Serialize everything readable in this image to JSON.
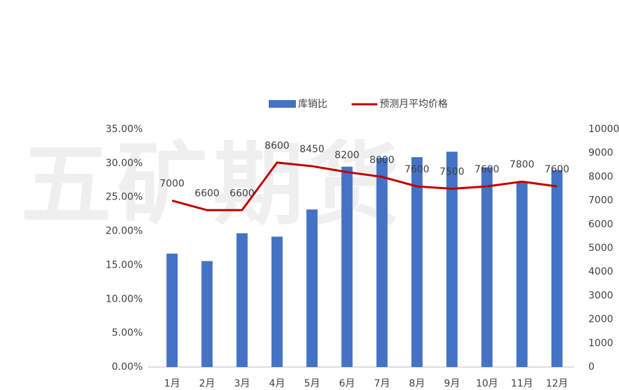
{
  "watermark": "五矿期货",
  "chart_data": {
    "type": "bar",
    "categories": [
      "1月",
      "2月",
      "3月",
      "4月",
      "5月",
      "6月",
      "7月",
      "8月",
      "9月",
      "10月",
      "11月",
      "12月"
    ],
    "series": [
      {
        "name": "库销比",
        "type": "bar",
        "color": "#4472c4",
        "axis": "y",
        "values": [
          16.7,
          15.6,
          19.7,
          19.2,
          23.2,
          29.5,
          30.8,
          30.9,
          31.7,
          29.4,
          27.2,
          29.0
        ]
      },
      {
        "name": "预测月平均价格",
        "type": "line",
        "color": "#c00000",
        "axis": "y2",
        "values": [
          7000,
          6600,
          6600,
          8600,
          8450,
          8200,
          8000,
          7600,
          7500,
          7600,
          7800,
          7600
        ]
      }
    ],
    "ylim": [
      0,
      35
    ],
    "yticks": [
      {
        "value": 0,
        "label": "0.00%"
      },
      {
        "value": 5,
        "label": "5.00%"
      },
      {
        "value": 10,
        "label": "10.00%"
      },
      {
        "value": 15,
        "label": "15.00%"
      },
      {
        "value": 20,
        "label": "20.00%"
      },
      {
        "value": 25,
        "label": "25.00%"
      },
      {
        "value": 30,
        "label": "30.00%"
      },
      {
        "value": 35,
        "label": "35.00%"
      }
    ],
    "y2lim": [
      0,
      10000
    ],
    "y2ticks": [
      0,
      1000,
      2000,
      3000,
      4000,
      5000,
      6000,
      7000,
      8000,
      9000,
      10000
    ],
    "legend": "top",
    "grid": false,
    "data_labels": "y2"
  }
}
